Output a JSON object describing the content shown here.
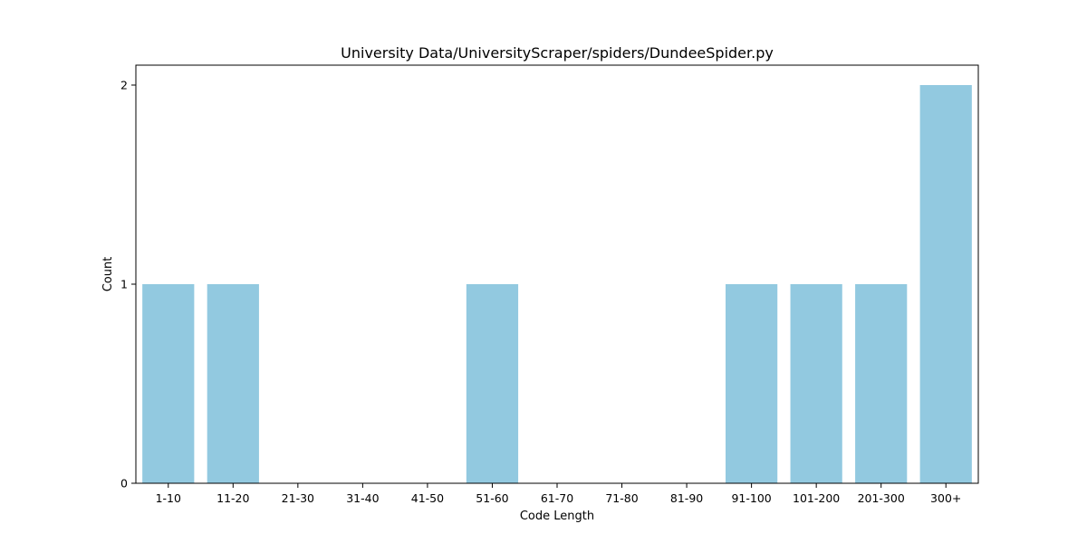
{
  "chart_data": {
    "type": "bar",
    "title": "University Data/UniversityScraper/spiders/DundeeSpider.py",
    "xlabel": "Code Length",
    "ylabel": "Count",
    "categories": [
      "1-10",
      "11-20",
      "21-30",
      "31-40",
      "41-50",
      "51-60",
      "61-70",
      "71-80",
      "81-90",
      "91-100",
      "101-200",
      "201-300",
      "300+"
    ],
    "values": [
      1,
      1,
      0,
      0,
      0,
      1,
      0,
      0,
      0,
      1,
      1,
      1,
      2
    ],
    "ylim": [
      0,
      2.1
    ],
    "yticks": [
      0,
      1,
      2
    ],
    "bar_color": "#92c9e0",
    "grid": false,
    "legend": "none"
  }
}
